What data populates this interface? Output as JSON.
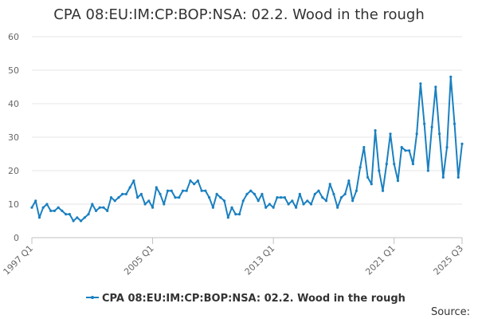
{
  "chart_data": {
    "type": "line",
    "title": "CPA 08:EU:IM:CP:BOP:NSA: 02.2. Wood in the rough",
    "xlabel": "",
    "ylabel": "",
    "ylim": [
      0,
      60
    ],
    "y_ticks": [
      0,
      10,
      20,
      30,
      40,
      50,
      60
    ],
    "x_ticks": [
      "1997 Q1",
      "2005 Q1",
      "2013 Q1",
      "2021 Q1",
      "2025 Q3"
    ],
    "grid": true,
    "legend_position": "bottom",
    "source_label": "Source:",
    "series": [
      {
        "name": "CPA 08:EU:IM:CP:BOP:NSA: 02.2. Wood in the rough",
        "color": "#1a80c0",
        "x_start": "1997 Q1",
        "values": [
          9,
          11,
          6,
          9,
          10,
          8,
          8,
          9,
          8,
          7,
          7,
          5,
          6,
          5,
          6,
          7,
          10,
          8,
          9,
          9,
          8,
          12,
          11,
          12,
          13,
          13,
          15,
          17,
          12,
          13,
          10,
          11,
          9,
          15,
          13,
          10,
          14,
          14,
          12,
          12,
          14,
          14,
          17,
          16,
          17,
          14,
          14,
          12,
          9,
          13,
          12,
          11,
          6,
          9,
          7,
          7,
          11,
          13,
          14,
          13,
          11,
          13,
          9,
          10,
          9,
          12,
          12,
          12,
          10,
          11,
          9,
          13,
          10,
          11,
          10,
          13,
          14,
          12,
          11,
          16,
          13,
          9,
          12,
          13,
          17,
          11,
          14,
          21,
          27,
          18,
          16,
          32,
          20,
          14,
          22,
          31,
          22,
          17,
          27,
          26,
          26,
          22,
          31,
          46,
          34,
          20,
          33,
          45,
          31,
          18,
          27,
          48,
          34,
          18,
          28
        ]
      }
    ]
  }
}
